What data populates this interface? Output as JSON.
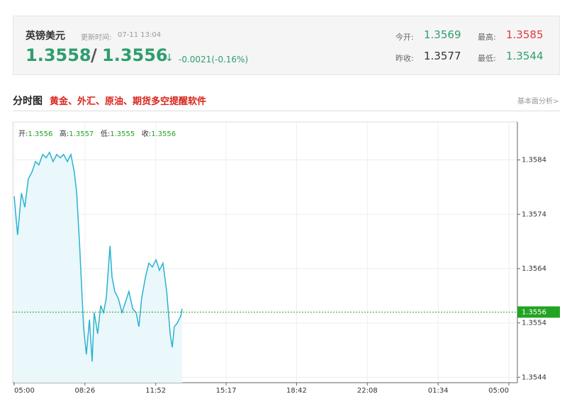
{
  "header": {
    "name": "英镑美元",
    "update_label": "更新时间:",
    "update_time": "07-11 13:04",
    "bid": "1.3558",
    "separator": "/",
    "ask": "1.3556",
    "arrow": "↓",
    "change": "-0.0021(-0.16%)",
    "open_label": "今开:",
    "open": "1.3569",
    "high_label": "最高:",
    "high": "1.3585",
    "prev_close_label": "昨收:",
    "prev_close": "1.3577",
    "low_label": "最低:",
    "low": "1.3544"
  },
  "section": {
    "title": "分时图",
    "promo": "黄金、外汇、原油、期货多空提醒软件",
    "link": "基本面分析>"
  },
  "quote_bar": {
    "open_label": "开:",
    "open": "1.3556",
    "high_label": "高:",
    "high": "1.3557",
    "low_label": "低:",
    "low": "1.3555",
    "close_label": "收:",
    "close": "1.3556"
  },
  "chart_data": {
    "type": "line",
    "x": [
      0,
      10,
      21,
      31,
      41,
      52,
      62,
      72,
      83,
      93,
      103,
      113,
      124,
      134,
      144,
      155,
      165,
      175,
      182,
      190,
      196,
      202,
      210,
      219,
      227,
      233,
      243,
      252,
      260,
      268,
      279,
      285,
      293,
      303,
      314,
      324,
      334,
      345,
      355,
      363,
      371,
      382,
      392,
      402,
      413,
      423,
      433,
      444,
      454,
      460,
      466,
      475,
      485,
      489
    ],
    "series": [
      {
        "color": "#29b3cf",
        "values": [
          1.35773,
          1.35702,
          1.35779,
          1.35753,
          1.35805,
          1.35818,
          1.35837,
          1.35831,
          1.3585,
          1.35844,
          1.35854,
          1.35837,
          1.3585,
          1.35844,
          1.3585,
          1.35837,
          1.3585,
          1.35818,
          1.35779,
          1.35689,
          1.35611,
          1.35533,
          1.35482,
          1.35546,
          1.35469,
          1.35559,
          1.3552,
          1.35572,
          1.35559,
          1.35585,
          1.35682,
          1.35624,
          1.35598,
          1.35585,
          1.35559,
          1.35579,
          1.35598,
          1.35566,
          1.35559,
          1.35533,
          1.35585,
          1.35624,
          1.3565,
          1.35643,
          1.35656,
          1.35637,
          1.3565,
          1.35598,
          1.3552,
          1.35495,
          1.35533,
          1.3554,
          1.35553,
          1.35566
        ]
      }
    ],
    "xlim": [
      0,
      1440
    ],
    "xticks": [
      {
        "value": 0,
        "label": "05:00"
      },
      {
        "value": 206,
        "label": "08:26"
      },
      {
        "value": 412,
        "label": "11:52"
      },
      {
        "value": 617,
        "label": "15:17"
      },
      {
        "value": 822,
        "label": "18:42"
      },
      {
        "value": 1028,
        "label": "22:08"
      },
      {
        "value": 1234,
        "label": "01:34"
      },
      {
        "value": 1440,
        "label": "05:00"
      }
    ],
    "ylim": [
      1.3543,
      1.3591
    ],
    "yticks": [
      1.3544,
      1.3554,
      1.3564,
      1.3574,
      1.3584
    ],
    "last_price": 1.3556,
    "last_price_color": "#22a322",
    "grid": true
  }
}
